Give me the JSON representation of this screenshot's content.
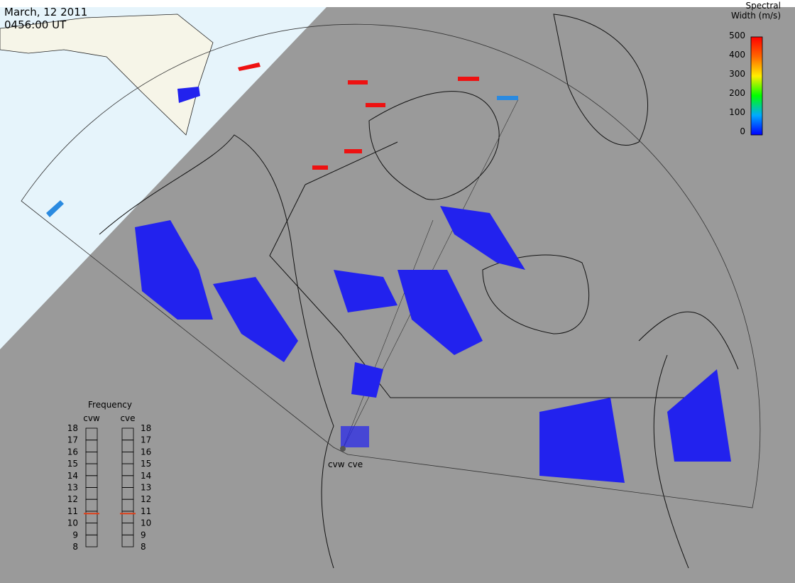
{
  "header": {
    "date": "March, 12 2011",
    "time": "0456:00 UT"
  },
  "colorbar": {
    "title": "Spectral Width (m/s)",
    "lim": [
      0,
      500
    ],
    "ticks": [
      0,
      100,
      200,
      300,
      400,
      500
    ]
  },
  "frequency": {
    "title": "Frequency",
    "lim": [
      8,
      18
    ],
    "ticks": [
      8,
      9,
      10,
      11,
      12,
      13,
      14,
      15,
      16,
      17,
      18
    ],
    "radars": [
      {
        "name": "cvw",
        "value": 10.8,
        "color": "#e0401a"
      },
      {
        "name": "cve",
        "value": 10.8,
        "color": "#e0401a"
      }
    ]
  },
  "map": {
    "radar_labels": [
      "cvw",
      "cve"
    ]
  }
}
